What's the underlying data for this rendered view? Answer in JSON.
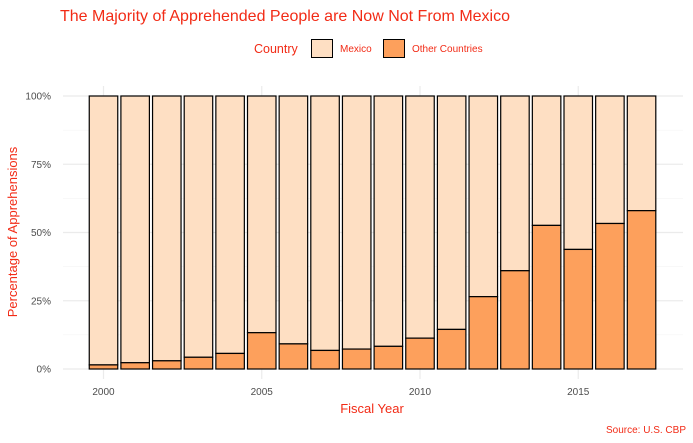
{
  "chart_data": {
    "type": "bar",
    "stacked": true,
    "title": "The Majority of Apprehended People are Now Not From Mexico",
    "xlabel": "Fiscal Year",
    "ylabel": "Percentage of Apprehensions",
    "caption": "Source: U.S. CBP",
    "legend": {
      "title": "Country",
      "position": "top",
      "entries": [
        "Mexico",
        "Other Countries"
      ]
    },
    "x": [
      2000,
      2001,
      2002,
      2003,
      2004,
      2005,
      2006,
      2007,
      2008,
      2009,
      2010,
      2011,
      2012,
      2013,
      2014,
      2015,
      2016,
      2017
    ],
    "xticks": [
      "2000",
      "2005",
      "2010",
      "2015"
    ],
    "yticks": [
      "0%",
      "25%",
      "50%",
      "75%",
      "100%"
    ],
    "ylim": [
      0,
      100
    ],
    "grid": true,
    "series": [
      {
        "name": "Other Countries",
        "color": "#FDA05C",
        "values": [
          1.5,
          2.3,
          3.0,
          4.3,
          5.7,
          13.3,
          9.2,
          6.8,
          7.3,
          8.3,
          11.3,
          14.5,
          26.5,
          36.0,
          52.6,
          43.8,
          53.3,
          58.0
        ]
      },
      {
        "name": "Mexico",
        "color": "#FEDFC3",
        "values": [
          98.5,
          97.7,
          97.0,
          95.7,
          94.3,
          86.7,
          90.8,
          93.2,
          92.7,
          91.7,
          88.7,
          85.5,
          73.5,
          64.0,
          47.4,
          56.2,
          46.7,
          42.0
        ]
      }
    ],
    "colors": {
      "title": "#F22B16",
      "axis_title": "#F22B16",
      "tick_label": "#4D4D4D",
      "gridline": "#EBEBEB",
      "bar_outline": "#000000"
    }
  }
}
